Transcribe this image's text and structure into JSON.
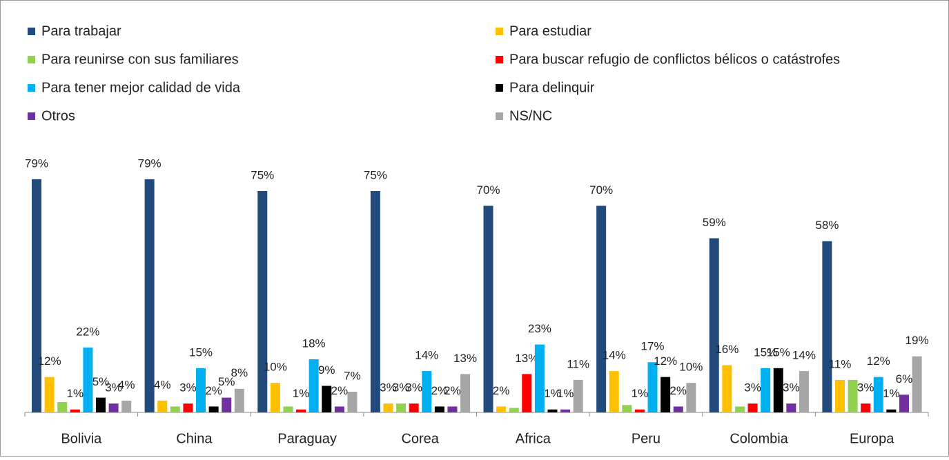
{
  "chart_data": {
    "type": "bar",
    "categories": [
      "Bolivia",
      "China",
      "Paraguay",
      "Corea",
      "Africa",
      "Peru",
      "Colombia",
      "Europa"
    ],
    "ylim": [
      0,
      100
    ],
    "series": [
      {
        "name": "Para trabajar",
        "color": "#234a7c",
        "values": [
          79,
          79,
          75,
          75,
          70,
          70,
          59,
          58
        ],
        "value_labels": [
          "79%",
          "79%",
          "75%",
          "75%",
          "70%",
          "70%",
          "59%",
          "58%"
        ]
      },
      {
        "name": "Para estudiar",
        "color": "#ffc000",
        "values": [
          12,
          4,
          10,
          3,
          2,
          14,
          16,
          11
        ],
        "value_labels": [
          "12%",
          "4%",
          "10%",
          "3%",
          "2%",
          "14%",
          "16%",
          "11%"
        ]
      },
      {
        "name": "Para reunirse con sus familiares",
        "color": "#92d050",
        "values": [
          3.5,
          2,
          2,
          3,
          1.5,
          2.5,
          2,
          11
        ],
        "value_labels": [
          null,
          null,
          null,
          "3%",
          null,
          null,
          null,
          null
        ]
      },
      {
        "name": "Para buscar refugio de conflictos bélicos o catástrofes",
        "color": "#ff0000",
        "values": [
          1,
          3,
          1,
          3,
          13,
          1,
          3,
          3
        ],
        "value_labels": [
          "1%",
          "3%",
          "1%",
          "3%",
          "13%",
          "1%",
          "3%",
          "3%"
        ]
      },
      {
        "name": "Para tener mejor calidad de vida",
        "color": "#00b0f0",
        "values": [
          22,
          15,
          18,
          14,
          23,
          17,
          15,
          12
        ],
        "value_labels": [
          "22%",
          "15%",
          "18%",
          "14%",
          "23%",
          "17%",
          "15%",
          "12%"
        ]
      },
      {
        "name": "Para delinquir",
        "color": "#000000",
        "values": [
          5,
          2,
          9,
          2,
          1,
          12,
          15,
          1
        ],
        "value_labels": [
          "5%",
          "2%",
          "9%",
          "2%",
          "1%",
          "12%",
          "15%",
          "1%"
        ]
      },
      {
        "name": "Otros",
        "color": "#7030a0",
        "values": [
          3,
          5,
          2,
          2,
          1,
          2,
          3,
          6
        ],
        "value_labels": [
          "3%",
          "5%",
          "2%",
          "2%",
          "1%",
          "2%",
          "3%",
          "6%"
        ]
      },
      {
        "name": "NS/NC",
        "color": "#a6a6a6",
        "values": [
          4,
          8,
          7,
          13,
          11,
          10,
          14,
          19
        ],
        "value_labels": [
          "4%",
          "8%",
          "7%",
          "13%",
          "11%",
          "10%",
          "14%",
          "19%"
        ]
      }
    ]
  }
}
